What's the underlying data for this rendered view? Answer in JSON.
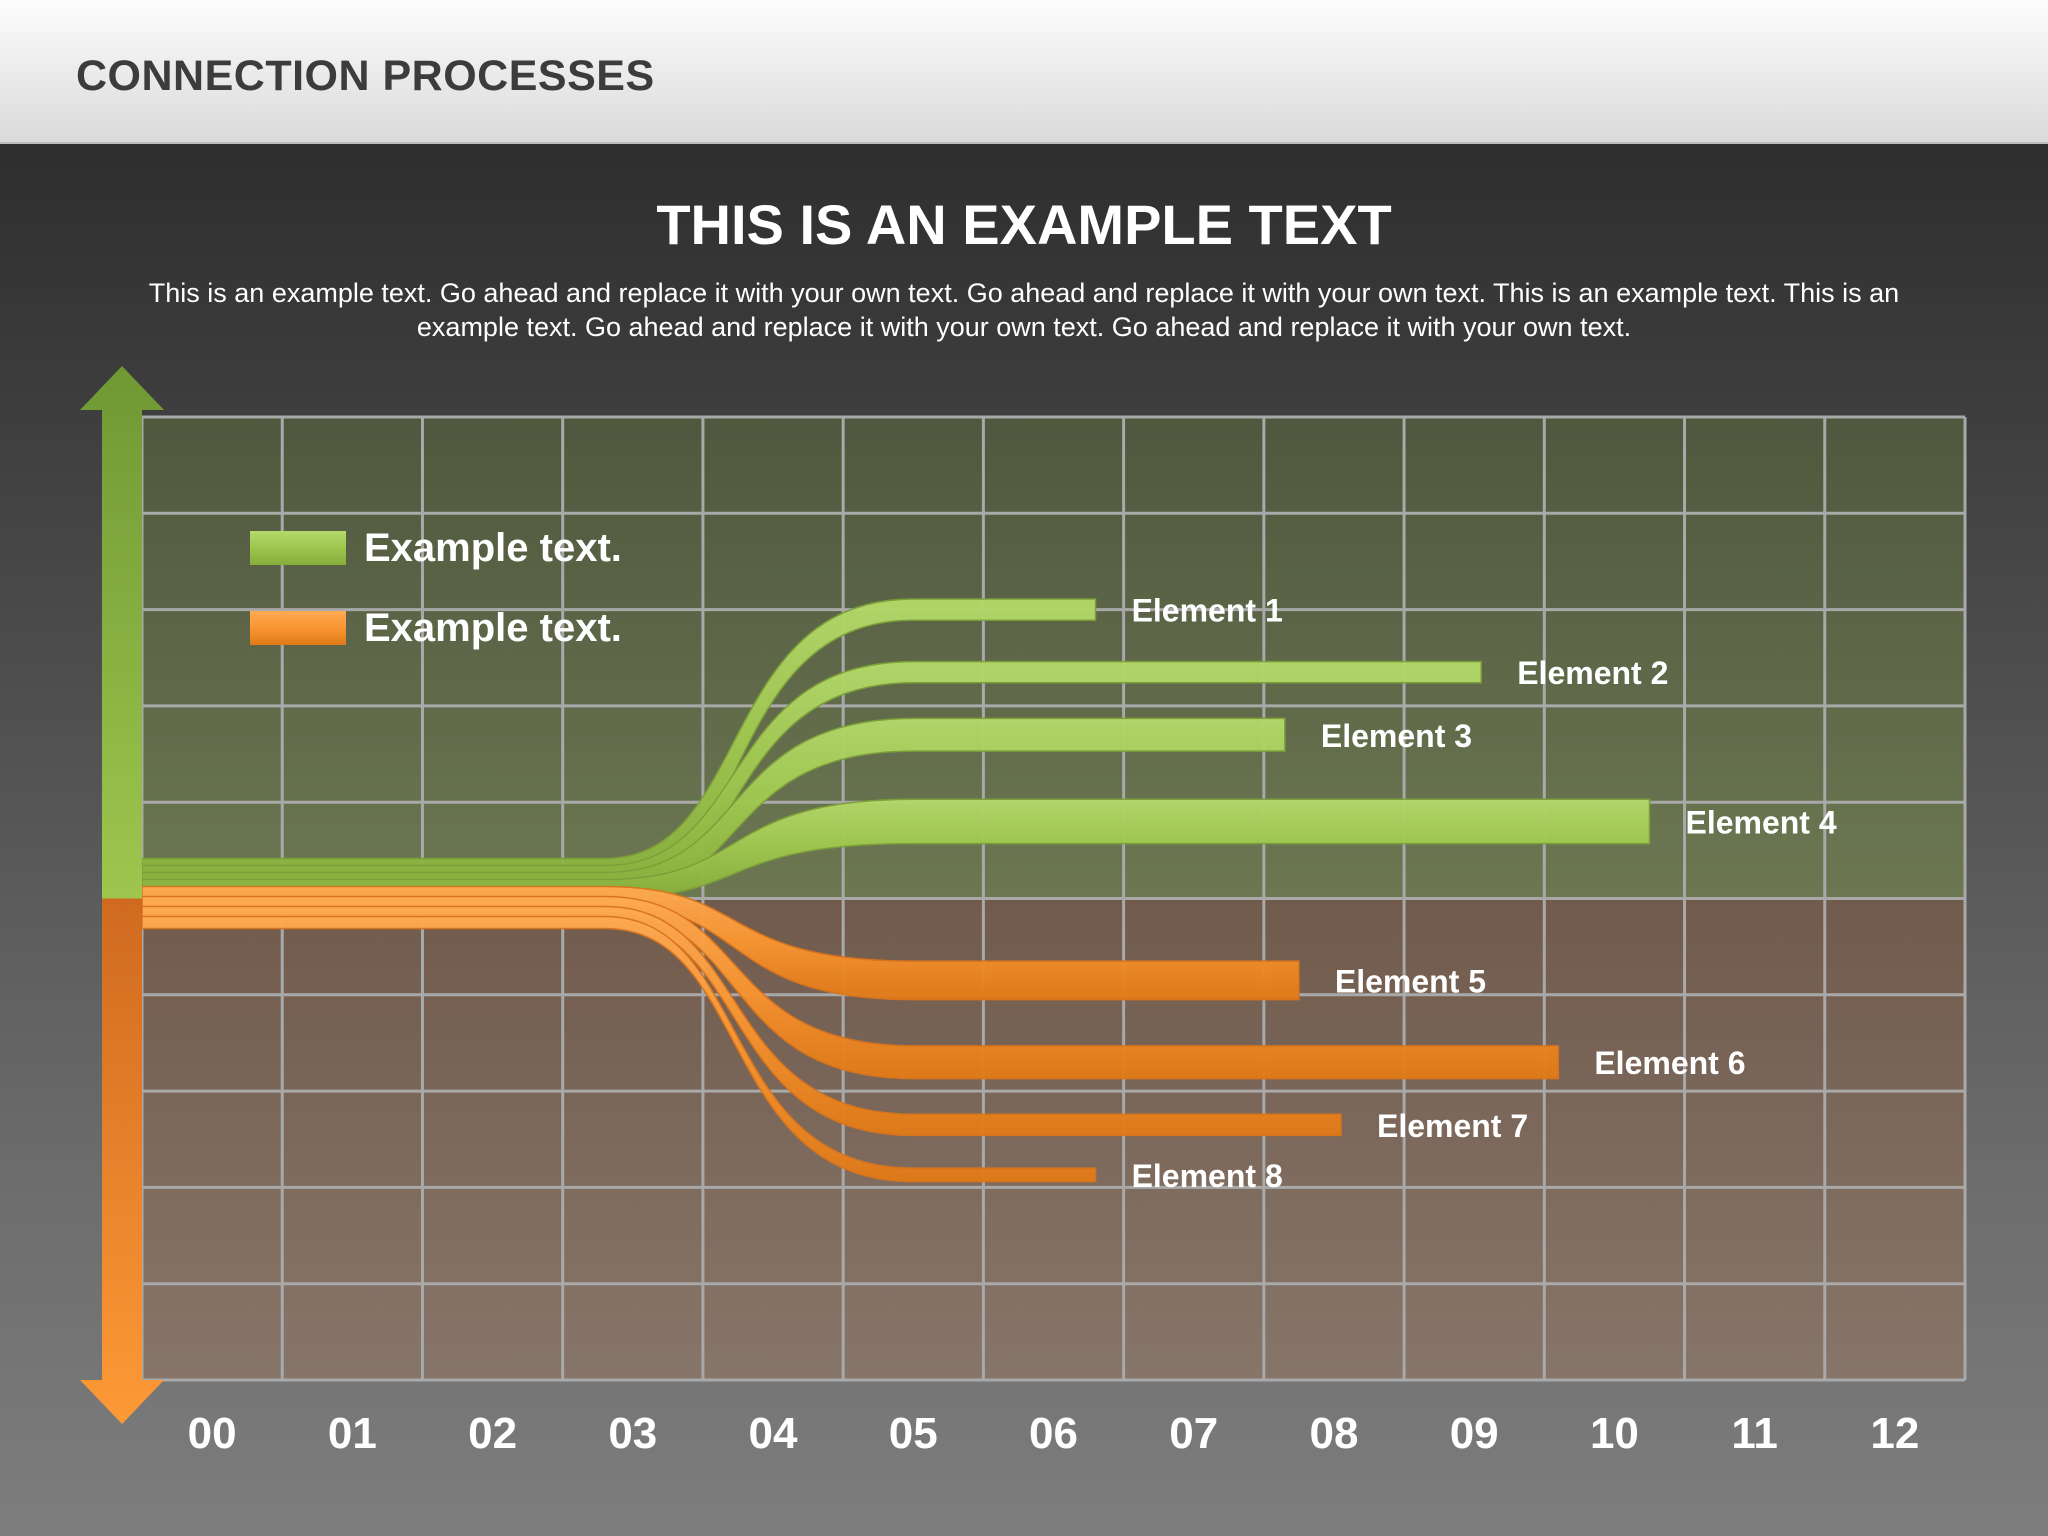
{
  "header": {
    "title": "CONNECTION PROCESSES"
  },
  "main": {
    "title": "THIS IS AN EXAMPLE TEXT",
    "description": "This is an example text. Go ahead and replace it with your own text. Go ahead and replace it with your own text. This is an example text. This is an example text. Go ahead and replace it with your own text. Go ahead and replace it with your own text."
  },
  "colors": {
    "green": "#9ec64e",
    "orange": "#f89532",
    "grid": "#a9a9a9",
    "text": "#ffffff"
  },
  "chart_data": {
    "type": "bar",
    "orientation": "horizontal",
    "x_ticks": [
      "00",
      "01",
      "02",
      "03",
      "04",
      "05",
      "06",
      "07",
      "08",
      "09",
      "10",
      "11",
      "12"
    ],
    "xlim": [
      0,
      13
    ],
    "grid": true,
    "legend": {
      "placement": "top-left",
      "entries": [
        {
          "label": "Example text.",
          "color": "#9ec64e"
        },
        {
          "label": "Example text.",
          "color": "#f89532"
        }
      ]
    },
    "axis_arrows": {
      "up_color": "#9ec64e",
      "down_color": "#f89532"
    },
    "elements": [
      {
        "label": "Element  1",
        "group": "green",
        "end": 6.8,
        "row": 2.0,
        "thickness": 0.22
      },
      {
        "label": "Element  2",
        "group": "green",
        "end": 9.55,
        "row": 2.65,
        "thickness": 0.22
      },
      {
        "label": "Element  3",
        "group": "green",
        "end": 8.15,
        "row": 3.3,
        "thickness": 0.34
      },
      {
        "label": "Element  4",
        "group": "green",
        "end": 10.75,
        "row": 4.2,
        "thickness": 0.46
      },
      {
        "label": "Element  5",
        "group": "orange",
        "end": 8.25,
        "row": 5.85,
        "thickness": 0.4
      },
      {
        "label": "Element  6",
        "group": "orange",
        "end": 10.1,
        "row": 6.7,
        "thickness": 0.34
      },
      {
        "label": "Element  7",
        "group": "orange",
        "end": 8.55,
        "row": 7.35,
        "thickness": 0.22
      },
      {
        "label": "Element  8",
        "group": "orange",
        "end": 6.8,
        "row": 7.87,
        "thickness": 0.14
      }
    ]
  }
}
